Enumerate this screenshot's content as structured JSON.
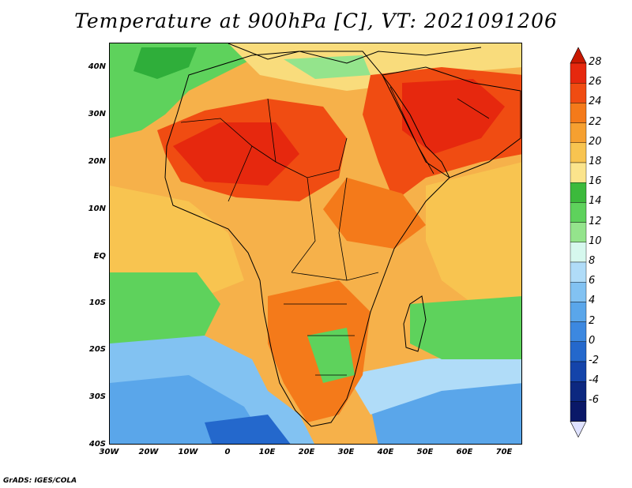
{
  "title": "Temperature at 900hPa [C], VT: 2021091206",
  "credit": "GrADS: IGES/COLA",
  "lat_labels": [
    "40N",
    "30N",
    "20N",
    "10N",
    "EQ",
    "10S",
    "20S",
    "30S",
    "40S"
  ],
  "lon_labels": [
    "30W",
    "20W",
    "10W",
    "0",
    "10E",
    "20E",
    "30E",
    "40E",
    "50E",
    "60E",
    "70E"
  ],
  "colorbar": {
    "labels": [
      "28",
      "26",
      "24",
      "22",
      "20",
      "18",
      "16",
      "14",
      "12",
      "10",
      "8",
      "6",
      "4",
      "2",
      "0",
      "-2",
      "-4",
      "-6"
    ],
    "colors": [
      "#e6280e",
      "#f04c12",
      "#f47a1a",
      "#f6a030",
      "#f8c450",
      "#fbe48c",
      "#3cba3c",
      "#5ed25c",
      "#94e48c",
      "#d6f8ee",
      "#b0dcf8",
      "#82c2f2",
      "#5aa6ea",
      "#3c88e0",
      "#2468cc",
      "#1444aa",
      "#0c2880",
      "#0a1868"
    ],
    "top_arrow_color": "#c81800",
    "bottom_arrow_color": "#dfe2ff"
  }
}
